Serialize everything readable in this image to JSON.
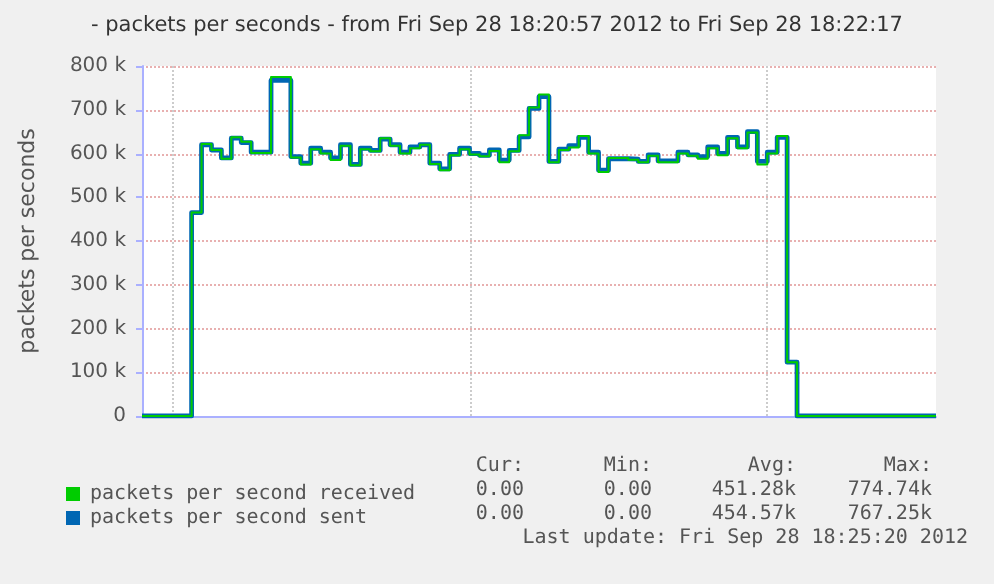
{
  "chart_data": {
    "type": "step",
    "title": "- packets per seconds - from Fri Sep 28 18:20:57 2012 to Fri Sep 28 18:22:17",
    "ylabel": "packets per seconds",
    "categories": [
      null,
      null,
      null,
      null,
      null,
      null,
      null,
      null,
      null,
      null,
      null,
      null,
      null,
      null,
      null,
      null,
      null,
      null,
      null,
      null,
      null,
      null,
      null,
      null,
      null,
      null,
      null,
      null,
      null,
      null,
      null,
      null,
      null,
      null,
      null,
      null,
      null,
      null,
      null,
      null,
      null,
      null,
      null,
      null,
      null,
      null,
      null,
      null,
      null,
      null,
      null,
      null,
      null,
      null,
      null,
      null,
      null,
      null,
      null,
      null,
      null,
      null,
      null,
      null,
      null,
      null,
      null,
      null,
      null,
      null,
      null,
      null,
      null,
      null,
      null,
      null,
      null,
      null,
      null,
      null,
      null
    ],
    "series": [
      {
        "name": "packets per second received",
        "color": "#00cc00",
        "values": [
          0,
          0,
          0,
          0,
          0,
          465000,
          622000,
          608000,
          588000,
          637000,
          627000,
          601000,
          601000,
          775000,
          775000,
          591000,
          575000,
          610000,
          600000,
          585000,
          618000,
          573000,
          610000,
          605000,
          635000,
          618000,
          600000,
          612000,
          620000,
          576000,
          562000,
          596000,
          610000,
          598000,
          594000,
          606000,
          580000,
          605000,
          642000,
          705000,
          735000,
          580000,
          608000,
          614000,
          640000,
          600000,
          558000,
          590000,
          590000,
          586000,
          580000,
          595000,
          580000,
          580000,
          600000,
          595000,
          588000,
          612000,
          596000,
          635000,
          612000,
          648000,
          575000,
          600000,
          640000,
          123000,
          0,
          0,
          0,
          0,
          0,
          0,
          0,
          0,
          0,
          0,
          0,
          0,
          0,
          0,
          0
        ]
      },
      {
        "name": "packets per second sent",
        "color": "#0066b3",
        "values": [
          0,
          0,
          0,
          0,
          0,
          465000,
          620000,
          608000,
          590000,
          635000,
          625000,
          603000,
          603000,
          767000,
          767000,
          593000,
          578000,
          612000,
          603000,
          590000,
          620000,
          575000,
          612000,
          607000,
          633000,
          620000,
          603000,
          615000,
          620000,
          578000,
          565000,
          598000,
          612000,
          600000,
          596000,
          608000,
          585000,
          607000,
          638000,
          703000,
          730000,
          582000,
          610000,
          618000,
          637000,
          603000,
          562000,
          588000,
          588000,
          587000,
          582000,
          597000,
          583000,
          583000,
          603000,
          597000,
          593000,
          615000,
          600000,
          637000,
          615000,
          650000,
          582000,
          603000,
          637000,
          123000,
          0,
          0,
          0,
          0,
          0,
          0,
          0,
          0,
          0,
          0,
          0,
          0,
          0,
          0,
          0
        ]
      }
    ],
    "ylim": [
      0,
      800000
    ],
    "yticks": [
      0,
      {
        "value": 100000,
        "label": "100 k"
      },
      {
        "value": 200000,
        "label": "200 k"
      },
      {
        "value": 300000,
        "label": "300 k"
      },
      {
        "value": 400000,
        "label": "400 k"
      },
      {
        "value": 500000,
        "label": "500 k"
      },
      {
        "value": 600000,
        "label": "600 k"
      },
      {
        "value": 700000,
        "label": "700 k"
      },
      {
        "value": 800000,
        "label": "800 k"
      }
    ],
    "tick_labels": "y",
    "grid": true,
    "legend": "bottom left",
    "line_style": "solid",
    "annotations": [
      "Cur:",
      "Min:",
      "Avg:",
      "Max:",
      "0.00",
      "0.00",
      "451.28k",
      "774.74k",
      "0.00",
      "0.00",
      "454.57k",
      "767.25k",
      "Last update: Fri Sep 28 18:25:20 2012"
    ]
  }
}
